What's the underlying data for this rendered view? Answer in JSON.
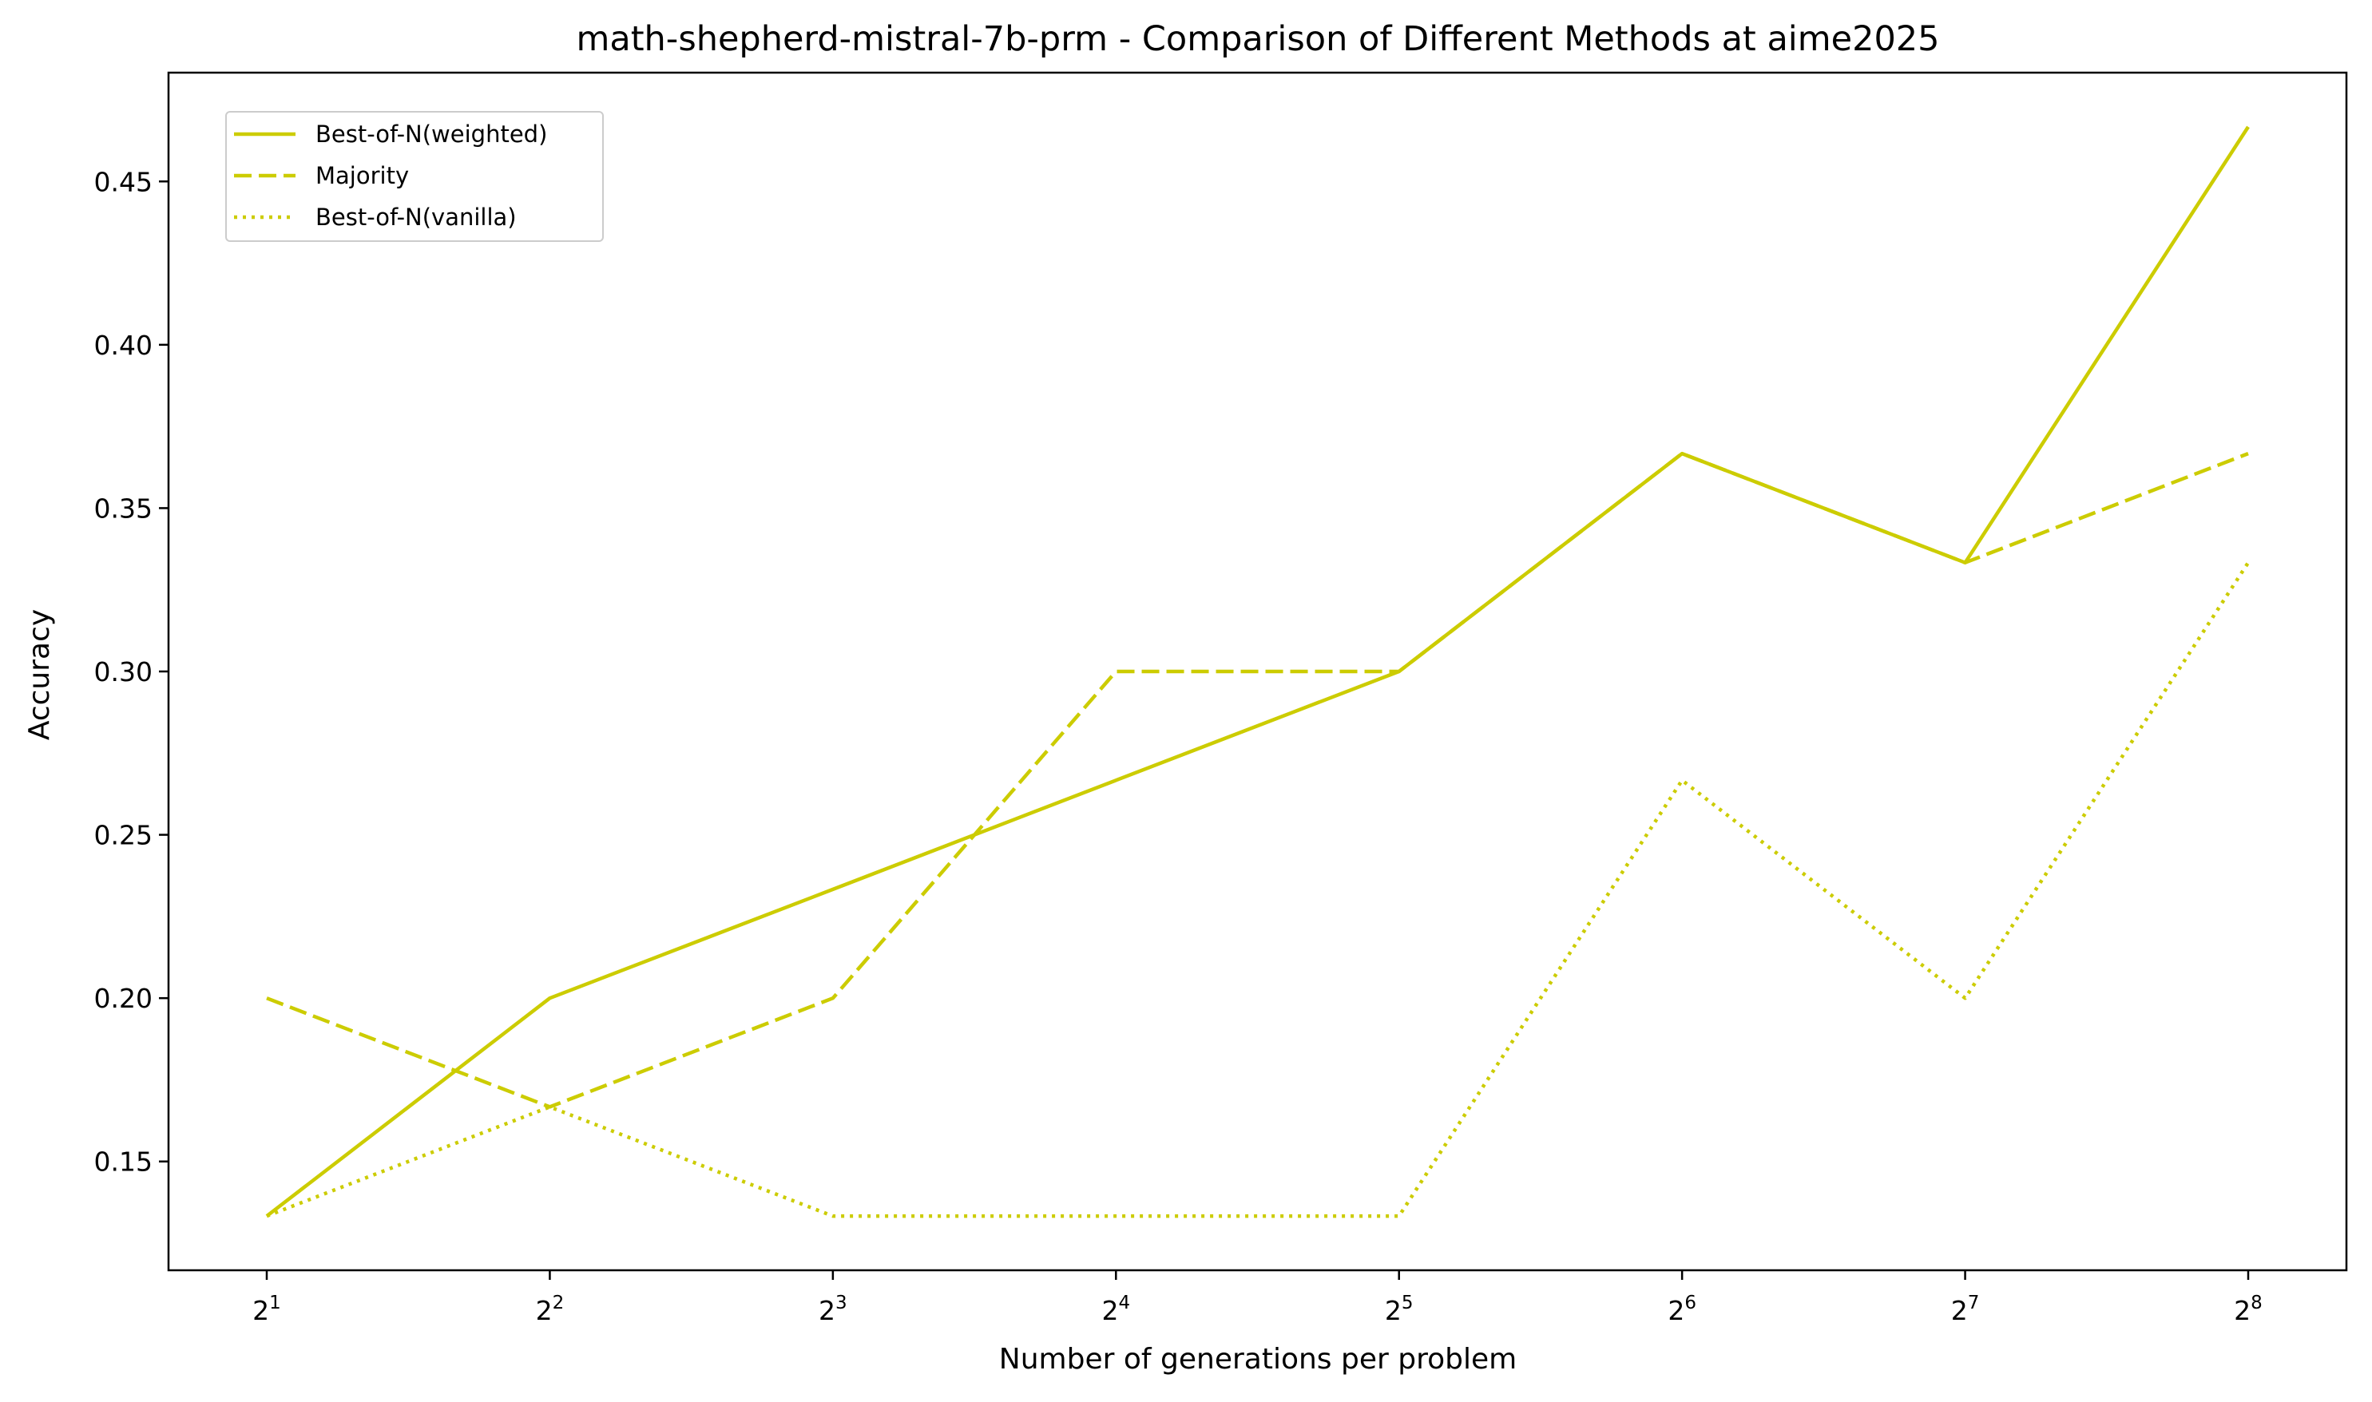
{
  "chart_data": {
    "type": "line",
    "title": "math-shepherd-mistral-7b-prm - Comparison of Different Methods at aime2025",
    "xlabel": "Number of generations per problem",
    "ylabel": "Accuracy",
    "x": [
      2,
      4,
      8,
      16,
      32,
      64,
      128,
      256
    ],
    "x_scale": "log2",
    "x_tick_labels": [
      {
        "base": "2",
        "exp": "1"
      },
      {
        "base": "2",
        "exp": "2"
      },
      {
        "base": "2",
        "exp": "3"
      },
      {
        "base": "2",
        "exp": "4"
      },
      {
        "base": "2",
        "exp": "5"
      },
      {
        "base": "2",
        "exp": "6"
      },
      {
        "base": "2",
        "exp": "7"
      },
      {
        "base": "2",
        "exp": "8"
      }
    ],
    "y_ticks": [
      "0.15",
      "0.20",
      "0.25",
      "0.30",
      "0.35",
      "0.40",
      "0.45"
    ],
    "ylim": [
      0.1167,
      0.4833
    ],
    "grid": false,
    "legend_position": "top-left",
    "color": "#cccc00",
    "series": [
      {
        "name": "Best-of-N(weighted)",
        "style": "solid",
        "values": [
          0.1333,
          0.2,
          0.2333,
          0.2667,
          0.3,
          0.3667,
          0.3333,
          0.4667
        ]
      },
      {
        "name": "Majority",
        "style": "dashed",
        "values": [
          0.2,
          0.1667,
          0.2,
          0.3,
          0.3,
          0.3667,
          0.3333,
          0.3667
        ]
      },
      {
        "name": "Best-of-N(vanilla)",
        "style": "dotted",
        "values": [
          0.1333,
          0.1667,
          0.1333,
          0.1333,
          0.1333,
          0.2667,
          0.2,
          0.3333
        ]
      }
    ]
  }
}
